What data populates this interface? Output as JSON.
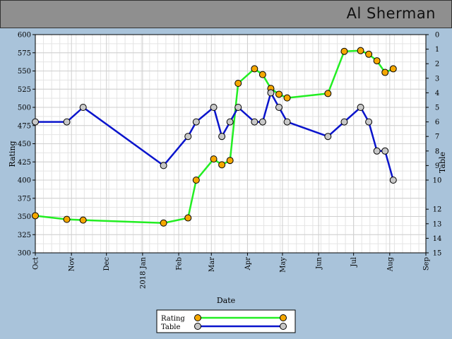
{
  "header": {
    "title": "Al Sherman"
  },
  "chart_data": {
    "type": "line",
    "xlabel": "Date",
    "ylabel": "Rating",
    "y2label": "Table",
    "ylim": [
      300,
      600
    ],
    "y_ticks": [
      300,
      325,
      350,
      375,
      400,
      425,
      450,
      475,
      500,
      525,
      550,
      575,
      600
    ],
    "y2lim": [
      0,
      15
    ],
    "y2_inverted": true,
    "y2_ticks": [
      0,
      1,
      2,
      3,
      4,
      5,
      6,
      7,
      8,
      9,
      10,
      12,
      13,
      14,
      15
    ],
    "xlim": [
      "2017-10-01",
      "2018-09-01"
    ],
    "x_ticks": [
      {
        "date": "2017-10-01",
        "label": "Oct"
      },
      {
        "date": "2017-11-01",
        "label": "Nov"
      },
      {
        "date": "2017-12-01",
        "label": "Dec"
      },
      {
        "date": "2018-01-01",
        "label": "2018 Jan"
      },
      {
        "date": "2018-02-01",
        "label": "Feb"
      },
      {
        "date": "2018-03-01",
        "label": "Mar"
      },
      {
        "date": "2018-04-01",
        "label": "Apr"
      },
      {
        "date": "2018-05-01",
        "label": "May"
      },
      {
        "date": "2018-06-01",
        "label": "Jun"
      },
      {
        "date": "2018-07-01",
        "label": "Jul"
      },
      {
        "date": "2018-08-01",
        "label": "Aug"
      },
      {
        "date": "2018-09-01",
        "label": "Sep"
      }
    ],
    "grid": true,
    "legend_position": "bottom-center",
    "series": [
      {
        "name": "Rating",
        "axis": "left",
        "line_color": "#22ee22",
        "marker_color": "#f5a800",
        "points": [
          {
            "x": "2017-10-01",
            "y": 351
          },
          {
            "x": "2017-10-28",
            "y": 346
          },
          {
            "x": "2017-11-11",
            "y": 345
          },
          {
            "x": "2018-01-19",
            "y": 341
          },
          {
            "x": "2018-02-09",
            "y": 348
          },
          {
            "x": "2018-02-16",
            "y": 400
          },
          {
            "x": "2018-03-03",
            "y": 429
          },
          {
            "x": "2018-03-10",
            "y": 421
          },
          {
            "x": "2018-03-17",
            "y": 427
          },
          {
            "x": "2018-03-24",
            "y": 533
          },
          {
            "x": "2018-04-07",
            "y": 553
          },
          {
            "x": "2018-04-14",
            "y": 545
          },
          {
            "x": "2018-04-21",
            "y": 526
          },
          {
            "x": "2018-04-28",
            "y": 518
          },
          {
            "x": "2018-05-05",
            "y": 513
          },
          {
            "x": "2018-06-09",
            "y": 519
          },
          {
            "x": "2018-06-23",
            "y": 577
          },
          {
            "x": "2018-07-07",
            "y": 578
          },
          {
            "x": "2018-07-14",
            "y": 573
          },
          {
            "x": "2018-07-21",
            "y": 564
          },
          {
            "x": "2018-07-28",
            "y": 548
          },
          {
            "x": "2018-08-04",
            "y": 553
          }
        ]
      },
      {
        "name": "Table",
        "axis": "right",
        "line_color": "#0a14cc",
        "marker_color": "#c8c8c8",
        "points": [
          {
            "x": "2017-10-01",
            "y": 6
          },
          {
            "x": "2017-10-28",
            "y": 6
          },
          {
            "x": "2017-11-11",
            "y": 5
          },
          {
            "x": "2018-01-19",
            "y": 9
          },
          {
            "x": "2018-02-09",
            "y": 7
          },
          {
            "x": "2018-02-16",
            "y": 6
          },
          {
            "x": "2018-03-03",
            "y": 5
          },
          {
            "x": "2018-03-10",
            "y": 7
          },
          {
            "x": "2018-03-17",
            "y": 6
          },
          {
            "x": "2018-03-24",
            "y": 5
          },
          {
            "x": "2018-04-07",
            "y": 6
          },
          {
            "x": "2018-04-14",
            "y": 6
          },
          {
            "x": "2018-04-21",
            "y": 4
          },
          {
            "x": "2018-04-28",
            "y": 5
          },
          {
            "x": "2018-05-05",
            "y": 6
          },
          {
            "x": "2018-06-09",
            "y": 7
          },
          {
            "x": "2018-06-23",
            "y": 6
          },
          {
            "x": "2018-07-07",
            "y": 5
          },
          {
            "x": "2018-07-14",
            "y": 6
          },
          {
            "x": "2018-07-21",
            "y": 8
          },
          {
            "x": "2018-07-28",
            "y": 8
          },
          {
            "x": "2018-08-04",
            "y": 10
          }
        ]
      }
    ]
  }
}
